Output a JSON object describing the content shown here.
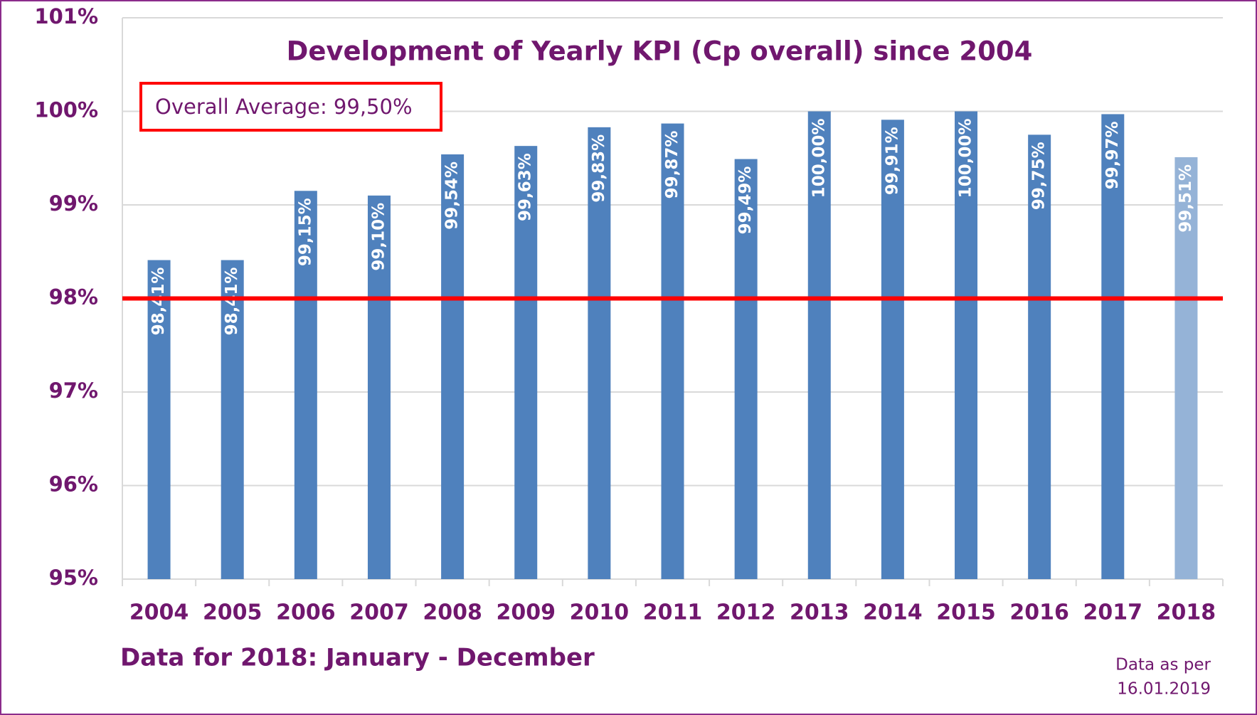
{
  "chart_data": {
    "type": "bar",
    "title": "Development of Yearly KPI (Cp overall) since 2004",
    "annotation": "Overall Average: 99,50%",
    "note": "Data for 2018: January - December",
    "data_date": [
      "Data as per",
      "16.01.2019"
    ],
    "categories": [
      "2004",
      "2005",
      "2006",
      "2007",
      "2008",
      "2009",
      "2010",
      "2011",
      "2012",
      "2013",
      "2014",
      "2015",
      "2016",
      "2017",
      "2018"
    ],
    "values": [
      98.41,
      98.41,
      99.15,
      99.1,
      99.54,
      99.63,
      99.83,
      99.87,
      99.49,
      100.0,
      99.91,
      100.0,
      99.75,
      99.97,
      99.51
    ],
    "value_labels": [
      "98,41%",
      "98,41%",
      "99,15%",
      "99,10%",
      "99,54%",
      "99,63%",
      "99,83%",
      "99,87%",
      "99,49%",
      "100,00%",
      "99,91%",
      "100,00%",
      "99,75%",
      "99,97%",
      "99,51%"
    ],
    "colors": [
      "#4f81bd",
      "#4f81bd",
      "#4f81bd",
      "#4f81bd",
      "#4f81bd",
      "#4f81bd",
      "#4f81bd",
      "#4f81bd",
      "#4f81bd",
      "#4f81bd",
      "#4f81bd",
      "#4f81bd",
      "#4f81bd",
      "#4f81bd",
      "#95b3d7"
    ],
    "target": 98,
    "target_color": "#ff0000",
    "ylim": [
      95,
      101
    ],
    "yticks": [
      {
        "value": 95,
        "label": "95%"
      },
      {
        "value": 96,
        "label": "96%"
      },
      {
        "value": 97,
        "label": "97%"
      },
      {
        "value": 98,
        "label": "98%"
      },
      {
        "value": 99,
        "label": "99%"
      },
      {
        "value": 100,
        "label": "100%"
      },
      {
        "value": 101,
        "label": "101%"
      }
    ],
    "grid": true
  }
}
